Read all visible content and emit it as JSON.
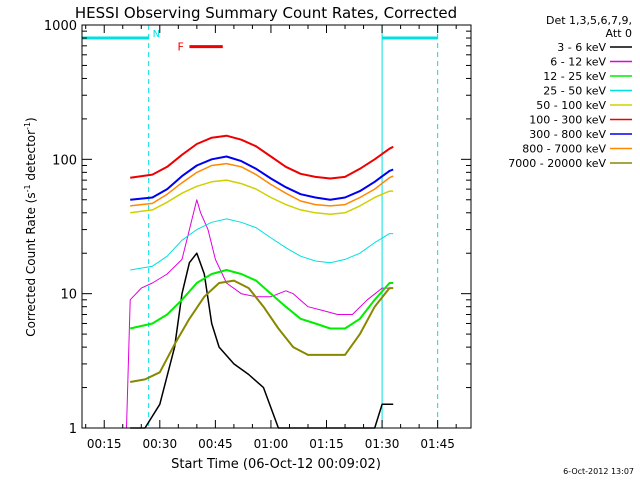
{
  "chart_data": {
    "type": "line",
    "title": "HESSI Observing Summary Count Rates, Corrected",
    "xlabel": "Start Time (06-Oct-12 00:09:02)",
    "ylabel_main": "Corrected Count Rate (s",
    "ylabel_sup1": "-1",
    "ylabel_mid": " detector",
    "ylabel_sup2": "-1",
    "ylabel_end": ")",
    "timestamp": "6-Oct-2012 13:07",
    "x_unit": "minutes after 00:00 UT",
    "xlim": [
      9,
      114
    ],
    "ylim": [
      1,
      1000
    ],
    "y_scale": "log",
    "x_ticks": [
      {
        "value": 15,
        "label": "00:15"
      },
      {
        "value": 30,
        "label": "00:30"
      },
      {
        "value": 45,
        "label": "00:45"
      },
      {
        "value": 60,
        "label": "01:00"
      },
      {
        "value": 75,
        "label": "01:15"
      },
      {
        "value": 90,
        "label": "01:30"
      },
      {
        "value": 105,
        "label": "01:45"
      }
    ],
    "y_ticks": [
      {
        "value": 1,
        "label": "1"
      },
      {
        "value": 10,
        "label": "10"
      },
      {
        "value": 100,
        "label": "100"
      },
      {
        "value": 1000,
        "label": "1000"
      }
    ],
    "legend": {
      "header1": "Det 1,3,5,6,7,9,",
      "header2": "Att 0",
      "placement": "right"
    },
    "series": [
      {
        "name": "3 - 6 keV",
        "color": "#000000",
        "width": 1.5,
        "points": [
          [
            22,
            1
          ],
          [
            26,
            1
          ],
          [
            30,
            1.5
          ],
          [
            34,
            4
          ],
          [
            36,
            10
          ],
          [
            38,
            17
          ],
          [
            40,
            20
          ],
          [
            42,
            14
          ],
          [
            44,
            6
          ],
          [
            46,
            4
          ],
          [
            50,
            3
          ],
          [
            54,
            2.5
          ],
          [
            58,
            2
          ],
          [
            62,
            1
          ],
          [
            88,
            1
          ],
          [
            90,
            1.5
          ],
          [
            93,
            1.5
          ]
        ]
      },
      {
        "name": "6 - 12 keV",
        "color": "#e000e0",
        "width": 1,
        "points": [
          [
            21,
            1
          ],
          [
            22,
            9
          ],
          [
            25,
            11
          ],
          [
            28,
            12
          ],
          [
            32,
            14
          ],
          [
            36,
            18
          ],
          [
            38,
            30
          ],
          [
            40,
            50
          ],
          [
            41,
            40
          ],
          [
            43,
            30
          ],
          [
            45,
            18
          ],
          [
            48,
            12
          ],
          [
            52,
            10
          ],
          [
            56,
            9.5
          ],
          [
            60,
            9.5
          ],
          [
            64,
            10.5
          ],
          [
            66,
            10
          ],
          [
            70,
            8
          ],
          [
            74,
            7.5
          ],
          [
            78,
            7
          ],
          [
            82,
            7
          ],
          [
            86,
            9
          ],
          [
            90,
            11
          ],
          [
            93,
            11
          ]
        ]
      },
      {
        "name": "12 - 25 keV",
        "color": "#00ee00",
        "width": 2,
        "points": [
          [
            22,
            5.5
          ],
          [
            28,
            6
          ],
          [
            32,
            7
          ],
          [
            36,
            9
          ],
          [
            40,
            12
          ],
          [
            44,
            14
          ],
          [
            48,
            15
          ],
          [
            52,
            14
          ],
          [
            56,
            12.5
          ],
          [
            60,
            10
          ],
          [
            64,
            8
          ],
          [
            68,
            6.5
          ],
          [
            72,
            6
          ],
          [
            76,
            5.5
          ],
          [
            80,
            5.5
          ],
          [
            84,
            6.5
          ],
          [
            88,
            9
          ],
          [
            92,
            12
          ],
          [
            93,
            12
          ]
        ]
      },
      {
        "name": "25 - 50 keV",
        "color": "#00e0e0",
        "width": 1,
        "points": [
          [
            22,
            15
          ],
          [
            28,
            16
          ],
          [
            32,
            19
          ],
          [
            36,
            25
          ],
          [
            40,
            30
          ],
          [
            44,
            34
          ],
          [
            48,
            36
          ],
          [
            52,
            34
          ],
          [
            56,
            31
          ],
          [
            60,
            26
          ],
          [
            64,
            22
          ],
          [
            68,
            19
          ],
          [
            72,
            17.5
          ],
          [
            76,
            17
          ],
          [
            80,
            18
          ],
          [
            84,
            20
          ],
          [
            88,
            24
          ],
          [
            92,
            28
          ],
          [
            93,
            28
          ]
        ]
      },
      {
        "name": "50 - 100 keV",
        "color": "#d0d000",
        "width": 1.5,
        "points": [
          [
            22,
            40
          ],
          [
            28,
            42
          ],
          [
            32,
            48
          ],
          [
            36,
            56
          ],
          [
            40,
            63
          ],
          [
            44,
            68
          ],
          [
            48,
            70
          ],
          [
            52,
            66
          ],
          [
            56,
            60
          ],
          [
            60,
            52
          ],
          [
            64,
            46
          ],
          [
            68,
            42
          ],
          [
            72,
            40
          ],
          [
            76,
            39
          ],
          [
            80,
            40
          ],
          [
            84,
            45
          ],
          [
            88,
            52
          ],
          [
            92,
            58
          ],
          [
            93,
            58
          ]
        ]
      },
      {
        "name": "100 - 300 keV",
        "color": "#ee0000",
        "width": 2,
        "points": [
          [
            22,
            73
          ],
          [
            28,
            77
          ],
          [
            32,
            88
          ],
          [
            36,
            108
          ],
          [
            40,
            130
          ],
          [
            44,
            145
          ],
          [
            48,
            150
          ],
          [
            52,
            140
          ],
          [
            56,
            125
          ],
          [
            60,
            105
          ],
          [
            64,
            88
          ],
          [
            68,
            78
          ],
          [
            72,
            74
          ],
          [
            76,
            72
          ],
          [
            80,
            74
          ],
          [
            84,
            85
          ],
          [
            88,
            100
          ],
          [
            92,
            120
          ],
          [
            93,
            124
          ]
        ]
      },
      {
        "name": "300 - 800 keV",
        "color": "#0000ee",
        "width": 2,
        "points": [
          [
            22,
            50
          ],
          [
            28,
            52
          ],
          [
            32,
            60
          ],
          [
            36,
            75
          ],
          [
            40,
            90
          ],
          [
            44,
            100
          ],
          [
            48,
            105
          ],
          [
            52,
            97
          ],
          [
            56,
            85
          ],
          [
            60,
            72
          ],
          [
            64,
            62
          ],
          [
            68,
            55
          ],
          [
            72,
            52
          ],
          [
            76,
            50
          ],
          [
            80,
            52
          ],
          [
            84,
            58
          ],
          [
            88,
            68
          ],
          [
            92,
            82
          ],
          [
            93,
            84
          ]
        ]
      },
      {
        "name": "800 - 7000 keV",
        "color": "#ff8800",
        "width": 1.5,
        "points": [
          [
            22,
            45
          ],
          [
            28,
            47
          ],
          [
            32,
            55
          ],
          [
            36,
            67
          ],
          [
            40,
            80
          ],
          [
            44,
            90
          ],
          [
            48,
            93
          ],
          [
            52,
            88
          ],
          [
            56,
            77
          ],
          [
            60,
            65
          ],
          [
            64,
            56
          ],
          [
            68,
            49
          ],
          [
            72,
            46
          ],
          [
            76,
            45
          ],
          [
            80,
            46
          ],
          [
            84,
            52
          ],
          [
            88,
            60
          ],
          [
            92,
            73
          ],
          [
            93,
            75
          ]
        ]
      },
      {
        "name": "7000 - 20000 keV",
        "color": "#888800",
        "width": 2,
        "points": [
          [
            22,
            2.2
          ],
          [
            26,
            2.3
          ],
          [
            30,
            2.6
          ],
          [
            34,
            4.2
          ],
          [
            38,
            6.5
          ],
          [
            42,
            9.5
          ],
          [
            46,
            12
          ],
          [
            50,
            12.5
          ],
          [
            54,
            11
          ],
          [
            58,
            8
          ],
          [
            62,
            5.5
          ],
          [
            66,
            4
          ],
          [
            70,
            3.5
          ],
          [
            76,
            3.5
          ],
          [
            80,
            3.5
          ],
          [
            84,
            5
          ],
          [
            88,
            8
          ],
          [
            92,
            11
          ],
          [
            93,
            11
          ]
        ]
      }
    ],
    "annotations": {
      "night_label": "N",
      "flare_label": "F",
      "night_color": "#00e0e0",
      "flare_color": "#ee0000",
      "night_intervals": [
        [
          9,
          27
        ],
        [
          90,
          105
        ]
      ],
      "night_dashes": [
        27,
        105
      ],
      "night_solid": [
        90
      ],
      "flare_interval": [
        38,
        47
      ],
      "night_bar_value": 800,
      "flare_bar_value": 690
    }
  }
}
